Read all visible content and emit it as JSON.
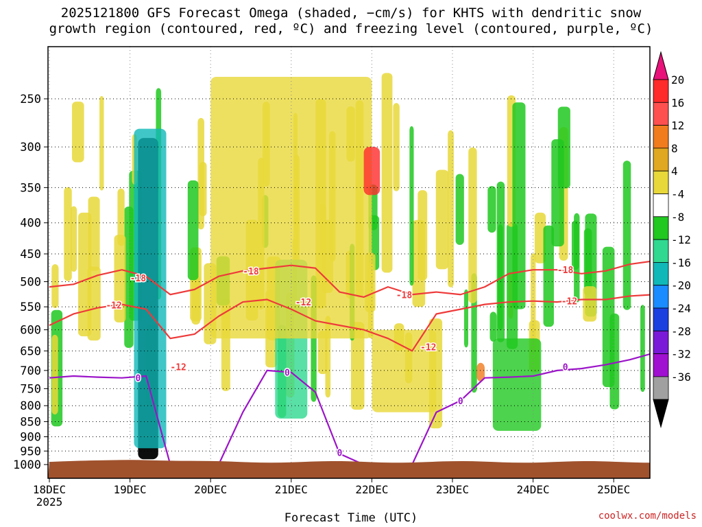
{
  "title_line1": "2025121800 GFS Forecast Omega (shaded, −cm/s) for KHTS with dendritic snow",
  "title_line2": "growth region (contoured, red, ºC) and freezing level (contoured, purple, ºC)",
  "credit": "coolwx.com/models",
  "colors": {
    "isotherm_red": "#ee3a3a",
    "freezing_purple": "#9b14c8",
    "terrain": "#a0522d"
  },
  "chart_data": {
    "type": "heatmap",
    "title": "2025121800 GFS Forecast Omega (shaded, −cm/s) for KHTS with dendritic snow growth region (contoured, red, ºC) and freezing level (contoured, purple, ºC)",
    "xlabel": "Forecast Time (UTC)",
    "ylabel": "",
    "grid": true,
    "x_ticks": [
      {
        "label": "18DEC",
        "sub": "2025"
      },
      {
        "label": "19DEC",
        "sub": ""
      },
      {
        "label": "20DEC",
        "sub": ""
      },
      {
        "label": "21DEC",
        "sub": ""
      },
      {
        "label": "22DEC",
        "sub": ""
      },
      {
        "label": "23DEC",
        "sub": ""
      },
      {
        "label": "24DEC",
        "sub": ""
      },
      {
        "label": "25DEC",
        "sub": ""
      }
    ],
    "xlim_days": [
      0,
      7.5
    ],
    "y_axis": "pressure (hPa), log scale, inverted",
    "ylim": [
      1020,
      200
    ],
    "y_ticks": [
      250,
      300,
      350,
      400,
      450,
      500,
      550,
      600,
      650,
      700,
      750,
      800,
      850,
      900,
      950,
      1000
    ],
    "colorbar": {
      "labels": [
        "20",
        "16",
        "12",
        "8",
        "4",
        "-4",
        "-8",
        "-12",
        "-16",
        "-20",
        "-24",
        "-28",
        "-32",
        "-36"
      ],
      "colors": [
        "#ff2a2a",
        "#ff5050",
        "#f07c1e",
        "#e0a820",
        "#e8d83a",
        "#ffffff",
        "#20c820",
        "#30d890",
        "#10b8b8",
        "#1a8cff",
        "#1a40e0",
        "#7a1ad8",
        "#a010d0",
        "#a0a0a0",
        "#000000"
      ],
      "top_color": "#e8127a"
    },
    "omega_regions": [
      {
        "x": [
          1.1,
          1.35
        ],
        "p": [
          290,
          980
        ],
        "value": -36
      },
      {
        "x": [
          1.05,
          1.45
        ],
        "p": [
          280,
          940
        ],
        "value": -16
      },
      {
        "x": [
          2.8,
          3.2
        ],
        "p": [
          460,
          840
        ],
        "value": -12
      },
      {
        "x": [
          5.5,
          6.1
        ],
        "p": [
          620,
          880
        ],
        "value": -8
      },
      {
        "x": [
          2.0,
          4.0
        ],
        "p": [
          230,
          620
        ],
        "value": 4
      },
      {
        "x": [
          3.9,
          4.1
        ],
        "p": [
          300,
          360
        ],
        "value": 20
      },
      {
        "x": [
          4.0,
          4.8
        ],
        "p": [
          600,
          820
        ],
        "value": 4
      },
      {
        "x": [
          5.3,
          5.4
        ],
        "p": [
          680,
          730
        ],
        "value": 12
      }
    ],
    "series": [
      {
        "name": "-18",
        "color": "#ee3a3a",
        "x": [
          0,
          0.3,
          0.6,
          0.9,
          1.2,
          1.5,
          1.8,
          2.1,
          2.4,
          2.7,
          3.0,
          3.3,
          3.6,
          3.9,
          4.2,
          4.5,
          4.8,
          5.1,
          5.4,
          5.7,
          6.0,
          6.3,
          6.6,
          6.9,
          7.2,
          7.5
        ],
        "y": [
          510,
          505,
          488,
          478,
          490,
          525,
          515,
          490,
          480,
          475,
          470,
          475,
          520,
          530,
          510,
          525,
          520,
          525,
          510,
          485,
          478,
          478,
          485,
          480,
          468,
          462
        ]
      },
      {
        "name": "-12",
        "color": "#ee3a3a",
        "x": [
          0,
          0.3,
          0.6,
          0.9,
          1.2,
          1.5,
          1.8,
          2.1,
          2.4,
          2.7,
          3.0,
          3.3,
          3.6,
          3.9,
          4.2,
          4.5,
          4.8,
          5.1,
          5.4,
          5.7,
          6.0,
          6.3,
          6.6,
          6.9,
          7.2,
          7.5
        ],
        "y": [
          590,
          565,
          552,
          545,
          555,
          620,
          610,
          570,
          540,
          535,
          555,
          580,
          590,
          600,
          620,
          650,
          565,
          555,
          545,
          540,
          538,
          540,
          535,
          535,
          528,
          525
        ]
      },
      {
        "name": "0",
        "color": "#9b14c8",
        "x": [
          0,
          0.3,
          0.6,
          0.9,
          1.2,
          1.5,
          1.8,
          2.1,
          2.4,
          2.7,
          3.0,
          3.3,
          3.6,
          3.9,
          4.2,
          4.5,
          4.8,
          5.1,
          5.4,
          5.7,
          6.0,
          6.3,
          6.6,
          6.9,
          7.2,
          7.5
        ],
        "y": [
          720,
          715,
          718,
          720,
          715,
          1000,
          1000,
          1000,
          820,
          700,
          705,
          760,
          960,
          1000,
          1000,
          1000,
          820,
          785,
          720,
          718,
          715,
          700,
          695,
          685,
          672,
          655
        ]
      }
    ],
    "contour_labels": [
      {
        "text": "-18",
        "x": 2.5,
        "p": 480
      },
      {
        "text": "-18",
        "x": 1.1,
        "p": 493
      },
      {
        "text": "-18",
        "x": 4.4,
        "p": 525
      },
      {
        "text": "-18",
        "x": 6.4,
        "p": 478
      },
      {
        "text": "-12",
        "x": 0.8,
        "p": 546
      },
      {
        "text": "-12",
        "x": 3.15,
        "p": 540
      },
      {
        "text": "-12",
        "x": 1.6,
        "p": 690
      },
      {
        "text": "-12",
        "x": 4.7,
        "p": 640
      },
      {
        "text": "-12",
        "x": 6.45,
        "p": 538
      },
      {
        "text": "0",
        "x": 1.1,
        "p": 720
      },
      {
        "text": "0",
        "x": 2.95,
        "p": 705
      },
      {
        "text": "0",
        "x": 3.6,
        "p": 955
      },
      {
        "text": "0",
        "x": 5.1,
        "p": 785
      },
      {
        "text": "0",
        "x": 6.4,
        "p": 690
      }
    ]
  }
}
